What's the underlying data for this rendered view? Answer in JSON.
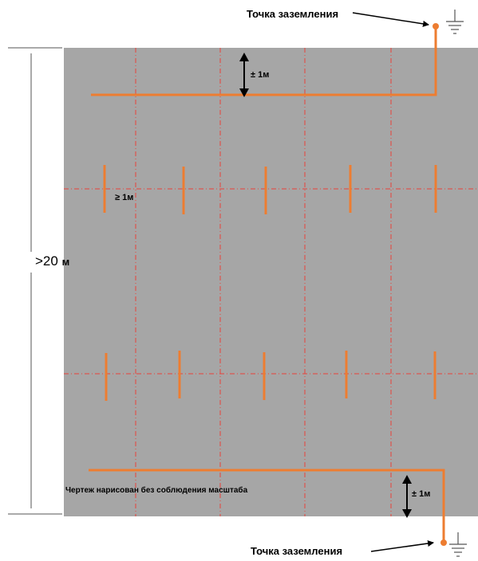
{
  "labels": {
    "ground_point_top": "Точка заземления",
    "ground_point_bottom": "Точка заземления",
    "height_value": ">20",
    "height_unit": "м",
    "top_offset": "± 1м",
    "electrode_spacing": "≥ 1м",
    "bottom_offset": "± 1м",
    "scale_note": "Чертеж нарисован без соблюдения масштаба"
  },
  "colors": {
    "panel": "#a6a6a6",
    "conductor": "#ed7d31",
    "grid_line": "#e8423a",
    "arrow": "#000000",
    "ground_symbol": "#555555"
  },
  "icons": {
    "ground": "ground-symbol-icon",
    "ground_point": "junction-dot-icon"
  }
}
